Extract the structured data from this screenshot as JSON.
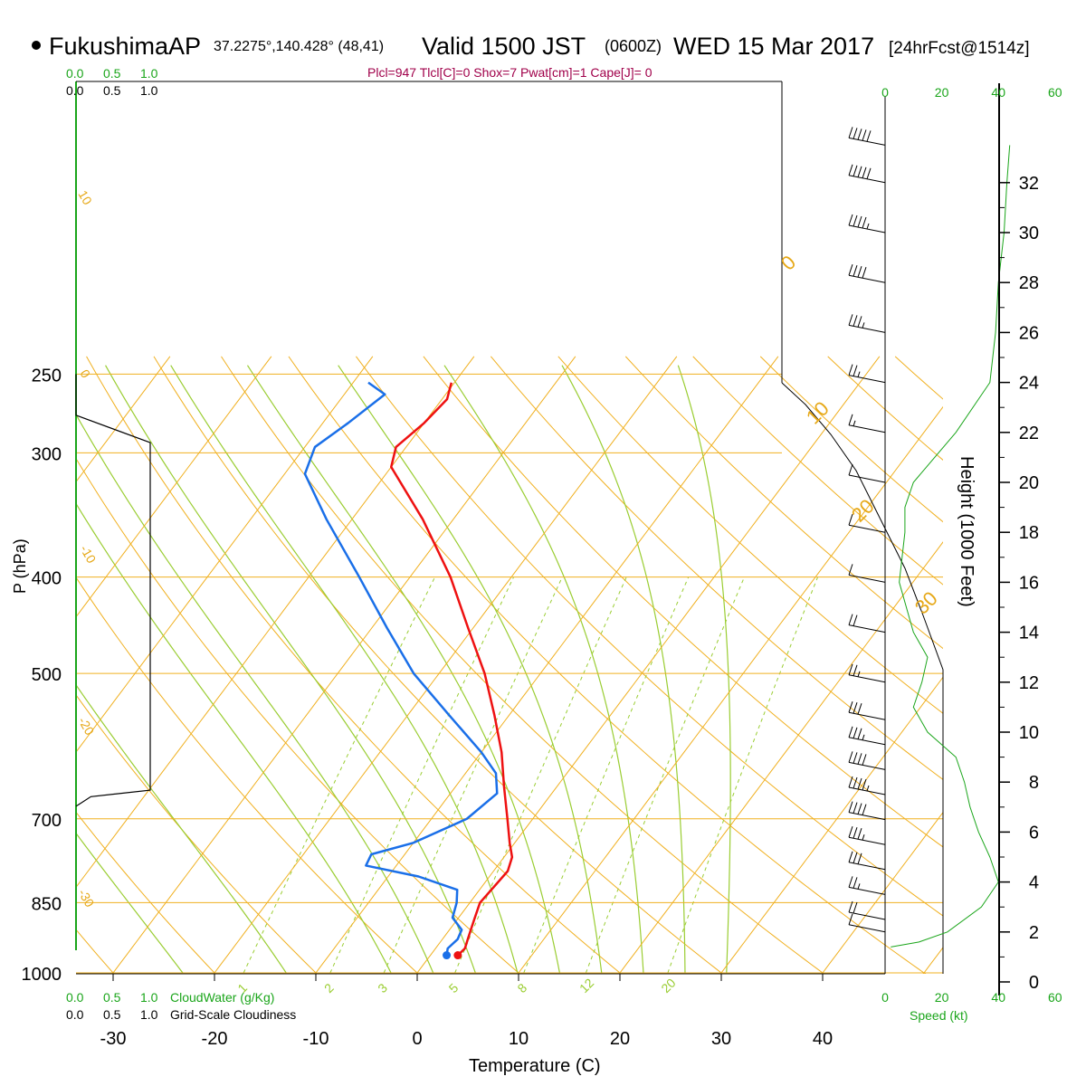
{
  "header": {
    "station": "FukushimaAP",
    "coords": "37.2275°,140.428° (48,41)",
    "valid": "Valid 1500 JST",
    "zulu": "(0600Z)",
    "date": "WED 15 Mar 2017",
    "forecast": "[24hrFcst@1514z]",
    "params": "Plcl=947 Tlcl[C]=0 Shox=7 Pwat[cm]=1 Cape[J]= 0"
  },
  "colors": {
    "temperature": "#ee1111",
    "dewpoint": "#1a6fe8",
    "isotherm": "#f0b020",
    "dry_adiabat": "#f0b020",
    "moist_adiabat": "#9acd32",
    "mixing_ratio": "#9acd32",
    "cloud": "#000000",
    "speed": "#1aa51a",
    "wind_barb": "#000000"
  },
  "axes": {
    "xlabel": "Temperature (C)",
    "ylabel": "P (hPa)",
    "height_label": "Height (1000 Feet)",
    "speed_label": "Speed (kt)",
    "pressure_ticks": [
      "250",
      "300",
      "400",
      "500",
      "700",
      "850",
      "1000"
    ],
    "temperature_ticks": [
      "-30",
      "-20",
      "-10",
      "0",
      "10",
      "20",
      "30",
      "40"
    ],
    "height_ticks": [
      "0",
      "2",
      "4",
      "6",
      "8",
      "10",
      "12",
      "14",
      "16",
      "18",
      "20",
      "22",
      "24",
      "26",
      "28",
      "30",
      "32"
    ],
    "speed_ticks": [
      "0",
      "20",
      "40",
      "60"
    ]
  },
  "cloud_panel": {
    "cloudwater_ticks": [
      "0.0",
      "0.5",
      "1.0"
    ],
    "cloudwater_label": "CloudWater (g/Kg)",
    "cloudiness_ticks": [
      "0.0",
      "0.5",
      "1.0"
    ],
    "cloudiness_label": "Grid-Scale Cloudiness"
  },
  "isotherm_labels": [
    "10",
    "0",
    "-10",
    "-20",
    "-30",
    "0",
    "10",
    "20",
    "30"
  ],
  "mixing_ratio_labels": [
    "1",
    "2",
    "3",
    "5",
    "8",
    "12",
    "20"
  ],
  "chart_data": {
    "type": "line",
    "title": "Valid 1500 JST (0600Z) WED 15 Mar 2017",
    "xlabel": "Temperature (C)",
    "ylabel": "P (hPa)",
    "xlim": [
      -34,
      36
    ],
    "ylim": [
      1000,
      250
    ],
    "y_scale": "log",
    "grid": true,
    "series": [
      {
        "name": "Temperature",
        "points": [
          {
            "p": 960,
            "t": 2.7
          },
          {
            "p": 945,
            "t": 2.9
          },
          {
            "p": 925,
            "t": 2.5
          },
          {
            "p": 905,
            "t": 2.1
          },
          {
            "p": 880,
            "t": 1.6
          },
          {
            "p": 850,
            "t": 1.0
          },
          {
            "p": 820,
            "t": 1.2
          },
          {
            "p": 790,
            "t": 1.4
          },
          {
            "p": 765,
            "t": 0.8
          },
          {
            "p": 740,
            "t": -0.5
          },
          {
            "p": 700,
            "t": -2.5
          },
          {
            "p": 650,
            "t": -5.2
          },
          {
            "p": 600,
            "t": -8.0
          },
          {
            "p": 550,
            "t": -11.5
          },
          {
            "p": 500,
            "t": -15.5
          },
          {
            "p": 450,
            "t": -20.5
          },
          {
            "p": 400,
            "t": -26.0
          },
          {
            "p": 350,
            "t": -33.0
          },
          {
            "p": 310,
            "t": -40.0
          },
          {
            "p": 296,
            "t": -41.0
          },
          {
            "p": 280,
            "t": -40.0
          },
          {
            "p": 265,
            "t": -39.5
          },
          {
            "p": 255,
            "t": -40.3
          }
        ]
      },
      {
        "name": "Dewpoint",
        "points": [
          {
            "p": 960,
            "t": 1.6
          },
          {
            "p": 945,
            "t": 1.2
          },
          {
            "p": 925,
            "t": 1.5
          },
          {
            "p": 905,
            "t": 1.2
          },
          {
            "p": 880,
            "t": -0.6
          },
          {
            "p": 850,
            "t": -1.3
          },
          {
            "p": 825,
            "t": -2.2
          },
          {
            "p": 800,
            "t": -7.0
          },
          {
            "p": 780,
            "t": -13.0
          },
          {
            "p": 760,
            "t": -13.3
          },
          {
            "p": 740,
            "t": -10.0
          },
          {
            "p": 700,
            "t": -6.5
          },
          {
            "p": 660,
            "t": -5.4
          },
          {
            "p": 630,
            "t": -7.0
          },
          {
            "p": 600,
            "t": -10.0
          },
          {
            "p": 550,
            "t": -16.0
          },
          {
            "p": 500,
            "t": -22.5
          },
          {
            "p": 450,
            "t": -28.5
          },
          {
            "p": 400,
            "t": -35.0
          },
          {
            "p": 350,
            "t": -42.5
          },
          {
            "p": 315,
            "t": -48.0
          },
          {
            "p": 296,
            "t": -49.0
          },
          {
            "p": 280,
            "t": -47.5
          },
          {
            "p": 262,
            "t": -46.0
          },
          {
            "p": 255,
            "t": -48.5
          }
        ]
      }
    ],
    "cloud_profile": {
      "name": "Grid-Scale Cloudiness",
      "points": [
        {
          "p": 250,
          "v": 0.0
        },
        {
          "p": 275,
          "v": 0.0
        },
        {
          "p": 293,
          "v": 1.0
        },
        {
          "p": 655,
          "v": 1.0
        },
        {
          "p": 665,
          "v": 0.2
        },
        {
          "p": 680,
          "v": 0.0
        }
      ]
    },
    "wind_speed_profile": {
      "name": "Speed (kt)",
      "points": [
        {
          "h": 1.4,
          "s": 2
        },
        {
          "h": 1.6,
          "s": 12
        },
        {
          "h": 2.0,
          "s": 22
        },
        {
          "h": 3.0,
          "s": 34
        },
        {
          "h": 4.0,
          "s": 40
        },
        {
          "h": 5.0,
          "s": 37
        },
        {
          "h": 6.0,
          "s": 33
        },
        {
          "h": 7.0,
          "s": 30
        },
        {
          "h": 8.0,
          "s": 28
        },
        {
          "h": 9.0,
          "s": 25
        },
        {
          "h": 10.0,
          "s": 15
        },
        {
          "h": 11.0,
          "s": 10
        },
        {
          "h": 12.0,
          "s": 13
        },
        {
          "h": 13.0,
          "s": 15
        },
        {
          "h": 14.0,
          "s": 10
        },
        {
          "h": 16.0,
          "s": 5
        },
        {
          "h": 18.0,
          "s": 7
        },
        {
          "h": 19.0,
          "s": 7
        },
        {
          "h": 20.0,
          "s": 10
        },
        {
          "h": 22.0,
          "s": 25
        },
        {
          "h": 24.0,
          "s": 37
        },
        {
          "h": 26.0,
          "s": 39
        },
        {
          "h": 28.0,
          "s": 40
        },
        {
          "h": 30.0,
          "s": 42
        },
        {
          "h": 32.0,
          "s": 43
        },
        {
          "h": 33.5,
          "s": 44
        }
      ]
    },
    "wind_barbs": [
      {
        "h": 33.5,
        "kt": 50
      },
      {
        "h": 32.0,
        "kt": 50
      },
      {
        "h": 30.0,
        "kt": 45
      },
      {
        "h": 28.0,
        "kt": 40
      },
      {
        "h": 26.0,
        "kt": 35
      },
      {
        "h": 24.0,
        "kt": 25
      },
      {
        "h": 22.0,
        "kt": 15
      },
      {
        "h": 20.0,
        "kt": 10
      },
      {
        "h": 18.0,
        "kt": 10
      },
      {
        "h": 16.0,
        "kt": 10
      },
      {
        "h": 14.0,
        "kt": 20
      },
      {
        "h": 12.0,
        "kt": 25
      },
      {
        "h": 10.5,
        "kt": 30
      },
      {
        "h": 9.5,
        "kt": 35
      },
      {
        "h": 8.5,
        "kt": 40
      },
      {
        "h": 7.5,
        "kt": 45
      },
      {
        "h": 6.5,
        "kt": 40
      },
      {
        "h": 5.5,
        "kt": 35
      },
      {
        "h": 4.5,
        "kt": 30
      },
      {
        "h": 3.5,
        "kt": 25
      },
      {
        "h": 2.5,
        "kt": 20
      },
      {
        "h": 2.0,
        "kt": 10
      }
    ]
  }
}
